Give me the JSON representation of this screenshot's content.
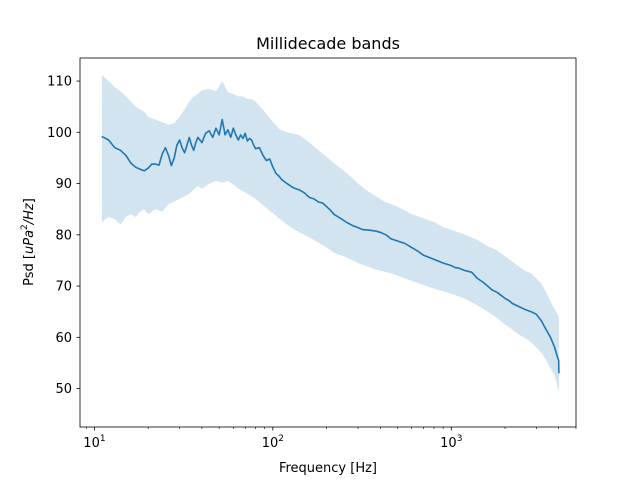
{
  "chart_data": {
    "type": "line",
    "title": "Millidecade bands",
    "xlabel": "Frequency [Hz]",
    "ylabel": "Psd [uPa²/Hz]",
    "ylabel_parts": {
      "prefix": "Psd [",
      "unit_base": "uPa",
      "exponent": "2",
      "unit_rest": "/Hz",
      "suffix": "]"
    },
    "x_scale": "log",
    "xlim": [
      8.3,
      5000
    ],
    "ylim": [
      42.5,
      114.5
    ],
    "grid": false,
    "legend": "none",
    "x_ticks": [
      {
        "value": 10,
        "base": "10",
        "exp": "1"
      },
      {
        "value": 100,
        "base": "10",
        "exp": "2"
      },
      {
        "value": 1000,
        "base": "10",
        "exp": "3"
      }
    ],
    "y_ticks": [
      50,
      60,
      70,
      80,
      90,
      100,
      110
    ],
    "colors": {
      "line": "#1f77b4",
      "band": "#1f77b4"
    },
    "series": [
      {
        "values": [
          [
            11,
            99.2
          ],
          [
            12,
            98.5
          ],
          [
            13,
            97.0
          ],
          [
            14,
            96.5
          ],
          [
            15,
            95.5
          ],
          [
            16,
            94.0
          ],
          [
            17,
            93.2
          ],
          [
            18,
            92.8
          ],
          [
            19,
            92.5
          ],
          [
            20,
            93.0
          ],
          [
            21,
            93.8
          ],
          [
            22,
            93.8
          ],
          [
            23,
            93.6
          ],
          [
            24,
            95.8
          ],
          [
            25,
            97.0
          ],
          [
            26,
            95.5
          ],
          [
            27,
            93.5
          ],
          [
            28,
            95.0
          ],
          [
            29,
            97.5
          ],
          [
            30,
            98.5
          ],
          [
            31,
            97.0
          ],
          [
            32,
            96.0
          ],
          [
            33,
            97.5
          ],
          [
            34,
            99.0
          ],
          [
            35,
            97.5
          ],
          [
            36,
            96.5
          ],
          [
            37,
            98.0
          ],
          [
            38,
            99.0
          ],
          [
            40,
            98.0
          ],
          [
            42,
            99.8
          ],
          [
            44,
            100.3
          ],
          [
            46,
            99.0
          ],
          [
            48,
            100.8
          ],
          [
            50,
            99.5
          ],
          [
            52,
            102.5
          ],
          [
            54,
            99.5
          ],
          [
            56,
            100.5
          ],
          [
            58,
            99.0
          ],
          [
            60,
            100.8
          ],
          [
            62,
            99.5
          ],
          [
            64,
            98.5
          ],
          [
            66,
            99.5
          ],
          [
            68,
            98.8
          ],
          [
            70,
            99.8
          ],
          [
            72,
            98.3
          ],
          [
            74,
            98.8
          ],
          [
            76,
            98.5
          ],
          [
            78,
            97.5
          ],
          [
            80,
            96.8
          ],
          [
            84,
            97.0
          ],
          [
            88,
            95.5
          ],
          [
            92,
            94.5
          ],
          [
            96,
            94.8
          ],
          [
            100,
            93.2
          ],
          [
            104,
            92.0
          ],
          [
            108,
            91.5
          ],
          [
            112,
            90.8
          ],
          [
            120,
            90.0
          ],
          [
            130,
            89.2
          ],
          [
            140,
            88.8
          ],
          [
            150,
            88.2
          ],
          [
            160,
            87.3
          ],
          [
            170,
            87.0
          ],
          [
            180,
            86.4
          ],
          [
            190,
            86.2
          ],
          [
            200,
            85.5
          ],
          [
            210,
            84.8
          ],
          [
            220,
            84.0
          ],
          [
            240,
            83.2
          ],
          [
            260,
            82.4
          ],
          [
            280,
            81.8
          ],
          [
            300,
            81.4
          ],
          [
            320,
            81.0
          ],
          [
            350,
            80.9
          ],
          [
            380,
            80.7
          ],
          [
            400,
            80.5
          ],
          [
            430,
            80.0
          ],
          [
            460,
            79.2
          ],
          [
            500,
            78.8
          ],
          [
            550,
            78.3
          ],
          [
            600,
            77.5
          ],
          [
            650,
            76.8
          ],
          [
            700,
            76.0
          ],
          [
            800,
            75.2
          ],
          [
            900,
            74.5
          ],
          [
            1000,
            74.0
          ],
          [
            1050,
            73.6
          ],
          [
            1100,
            73.5
          ],
          [
            1200,
            73.0
          ],
          [
            1300,
            72.7
          ],
          [
            1400,
            71.5
          ],
          [
            1500,
            70.8
          ],
          [
            1600,
            70.0
          ],
          [
            1700,
            69.2
          ],
          [
            1800,
            68.8
          ],
          [
            1900,
            68.2
          ],
          [
            2000,
            67.6
          ],
          [
            2100,
            67.2
          ],
          [
            2200,
            66.6
          ],
          [
            2400,
            66.0
          ],
          [
            2600,
            65.4
          ],
          [
            2800,
            65.0
          ],
          [
            3000,
            64.5
          ],
          [
            3200,
            63.2
          ],
          [
            3400,
            61.5
          ],
          [
            3600,
            60.0
          ],
          [
            3800,
            58.0
          ],
          [
            3950,
            56.0
          ],
          [
            4000,
            55.5
          ],
          [
            4010,
            53.0
          ]
        ],
        "upper": [
          [
            11,
            111.2
          ],
          [
            12,
            110.0
          ],
          [
            13,
            108.8
          ],
          [
            14,
            108.0
          ],
          [
            15,
            107.0
          ],
          [
            16,
            106.0
          ],
          [
            17,
            105.0
          ],
          [
            18,
            104.5
          ],
          [
            19,
            104.0
          ],
          [
            20,
            103.0
          ],
          [
            22,
            102.5
          ],
          [
            24,
            102.0
          ],
          [
            26,
            101.5
          ],
          [
            28,
            101.8
          ],
          [
            30,
            103.0
          ],
          [
            32,
            104.5
          ],
          [
            34,
            106.0
          ],
          [
            36,
            107.0
          ],
          [
            38,
            107.5
          ],
          [
            40,
            108.2
          ],
          [
            44,
            108.5
          ],
          [
            48,
            108.0
          ],
          [
            52,
            110.0
          ],
          [
            56,
            107.8
          ],
          [
            60,
            107.5
          ],
          [
            64,
            107.0
          ],
          [
            68,
            107.0
          ],
          [
            72,
            106.5
          ],
          [
            76,
            106.5
          ],
          [
            80,
            106.0
          ],
          [
            90,
            104.0
          ],
          [
            100,
            102.0
          ],
          [
            110,
            100.5
          ],
          [
            120,
            100.0
          ],
          [
            140,
            99.5
          ],
          [
            160,
            98.0
          ],
          [
            180,
            96.5
          ],
          [
            200,
            95.2
          ],
          [
            220,
            94.0
          ],
          [
            250,
            92.5
          ],
          [
            280,
            91.0
          ],
          [
            300,
            90.0
          ],
          [
            340,
            88.5
          ],
          [
            380,
            87.5
          ],
          [
            420,
            86.5
          ],
          [
            460,
            86.0
          ],
          [
            500,
            85.5
          ],
          [
            600,
            84.0
          ],
          [
            700,
            83.2
          ],
          [
            800,
            82.5
          ],
          [
            900,
            81.5
          ],
          [
            1000,
            81.0
          ],
          [
            1200,
            80.0
          ],
          [
            1400,
            79.0
          ],
          [
            1600,
            77.8
          ],
          [
            1800,
            77.0
          ],
          [
            2000,
            75.8
          ],
          [
            2200,
            74.8
          ],
          [
            2400,
            73.8
          ],
          [
            2600,
            73.0
          ],
          [
            2800,
            72.5
          ],
          [
            3000,
            71.5
          ],
          [
            3200,
            70.5
          ],
          [
            3400,
            68.8
          ],
          [
            3600,
            67.0
          ],
          [
            3800,
            65.5
          ],
          [
            4000,
            64.0
          ],
          [
            4010,
            63.5
          ]
        ],
        "lower": [
          [
            11,
            82.5
          ],
          [
            12,
            83.5
          ],
          [
            13,
            83.0
          ],
          [
            14,
            82.0
          ],
          [
            15,
            83.5
          ],
          [
            16,
            84.0
          ],
          [
            17,
            83.5
          ],
          [
            18,
            84.5
          ],
          [
            19,
            85.0
          ],
          [
            20,
            84.0
          ],
          [
            22,
            85.0
          ],
          [
            24,
            84.5
          ],
          [
            26,
            86.0
          ],
          [
            28,
            86.5
          ],
          [
            30,
            87.0
          ],
          [
            32,
            87.5
          ],
          [
            34,
            88.0
          ],
          [
            36,
            88.8
          ],
          [
            38,
            89.5
          ],
          [
            40,
            89.0
          ],
          [
            44,
            90.0
          ],
          [
            48,
            90.5
          ],
          [
            52,
            90.2
          ],
          [
            56,
            90.5
          ],
          [
            60,
            89.8
          ],
          [
            64,
            89.0
          ],
          [
            68,
            88.5
          ],
          [
            72,
            88.0
          ],
          [
            76,
            87.5
          ],
          [
            80,
            87.0
          ],
          [
            90,
            85.5
          ],
          [
            100,
            84.2
          ],
          [
            110,
            83.0
          ],
          [
            120,
            82.0
          ],
          [
            140,
            80.5
          ],
          [
            160,
            79.5
          ],
          [
            180,
            78.5
          ],
          [
            200,
            77.5
          ],
          [
            220,
            76.5
          ],
          [
            250,
            75.8
          ],
          [
            280,
            75.0
          ],
          [
            300,
            74.5
          ],
          [
            340,
            73.8
          ],
          [
            380,
            73.2
          ],
          [
            420,
            72.8
          ],
          [
            460,
            72.5
          ],
          [
            500,
            72.0
          ],
          [
            600,
            71.0
          ],
          [
            700,
            70.2
          ],
          [
            800,
            69.5
          ],
          [
            900,
            69.0
          ],
          [
            1000,
            68.5
          ],
          [
            1200,
            67.5
          ],
          [
            1400,
            66.2
          ],
          [
            1600,
            65.0
          ],
          [
            1800,
            63.8
          ],
          [
            2000,
            62.5
          ],
          [
            2200,
            61.5
          ],
          [
            2400,
            60.5
          ],
          [
            2600,
            59.8
          ],
          [
            2800,
            59.0
          ],
          [
            3000,
            58.0
          ],
          [
            3200,
            57.0
          ],
          [
            3400,
            55.5
          ],
          [
            3600,
            54.0
          ],
          [
            3800,
            52.5
          ],
          [
            4000,
            49.5
          ],
          [
            4010,
            49.0
          ]
        ]
      }
    ]
  }
}
